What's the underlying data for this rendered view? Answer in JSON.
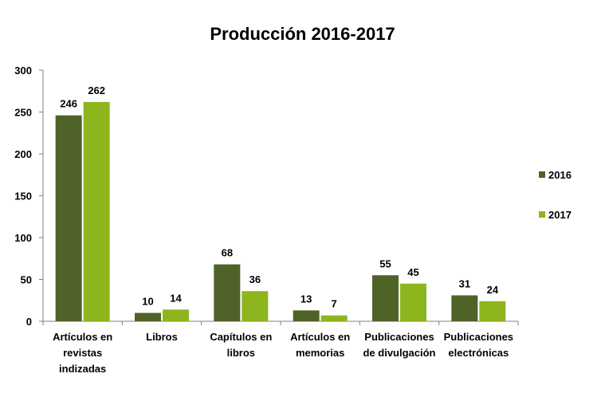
{
  "chart_data": {
    "type": "bar",
    "title": "Producción 2016-2017",
    "categories": [
      [
        "Artículos en",
        "revistas",
        "indizadas"
      ],
      [
        "Libros"
      ],
      [
        "Capítulos en",
        "libros"
      ],
      [
        "Artículos en",
        "memorias"
      ],
      [
        "Publicaciones",
        "de divulgación"
      ],
      [
        "Publicaciones",
        "electrónicas"
      ]
    ],
    "series": [
      {
        "name": "2016",
        "values": [
          246,
          10,
          68,
          13,
          55,
          31
        ],
        "color": "#4f6228"
      },
      {
        "name": "2017",
        "values": [
          262,
          14,
          36,
          7,
          45,
          24
        ],
        "color": "#8db51e"
      }
    ],
    "ylim": [
      0,
      300
    ],
    "yticks": [
      0,
      50,
      100,
      150,
      200,
      250,
      300
    ],
    "data_labels": true,
    "legend": "right",
    "grid": false
  }
}
